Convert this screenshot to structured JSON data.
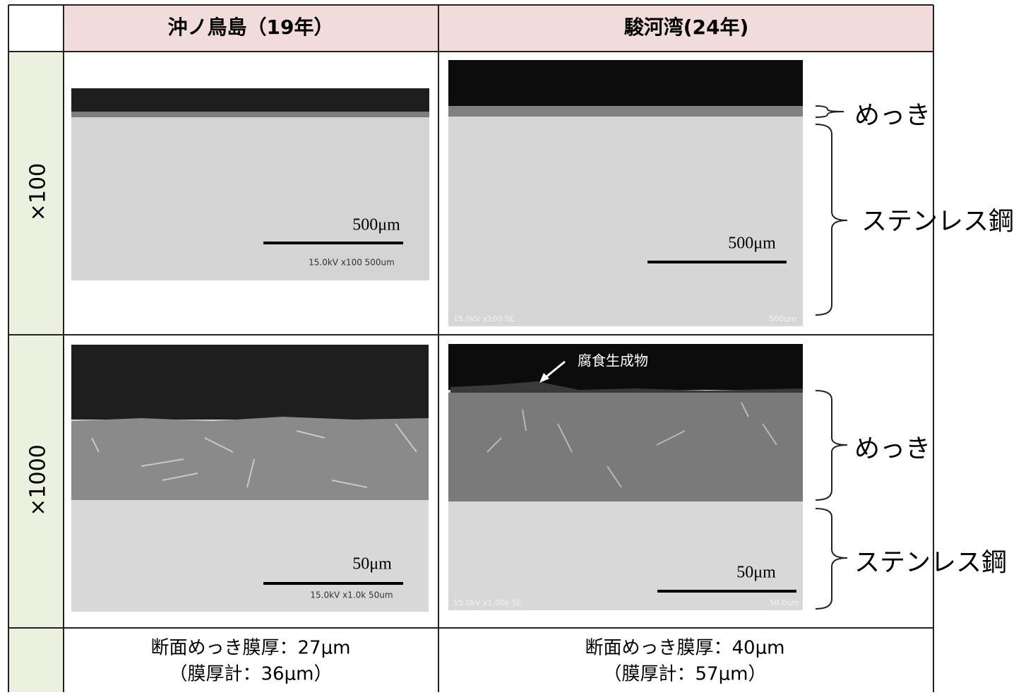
{
  "header": {
    "columns": [
      "沖ノ鳥島（19年）",
      "駿河湾(24年)"
    ]
  },
  "rows": [
    {
      "label": "×100",
      "left": {
        "scale": "500μm",
        "sem_info": "15.0kV x100 500um"
      },
      "right": {
        "scale": "500μm",
        "sem_info": "15.0kV x100 SE",
        "sem_scale": "500um"
      },
      "side_labels": [
        "めっき",
        "ステンレス鋼"
      ]
    },
    {
      "label": "×1000",
      "left": {
        "scale": "50μm",
        "sem_info": "15.0kV x1.0k 50um"
      },
      "right": {
        "scale": "50μm",
        "sem_info": "15.0kV x1.00k SE",
        "sem_scale": "50.0um",
        "annotation": "腐食生成物"
      },
      "side_labels": [
        "めっき",
        "ステンレス鋼"
      ]
    }
  ],
  "footer": {
    "left": [
      "断面めっき膜厚：27μm",
      "（膜厚計：36μm）"
    ],
    "right": [
      "断面めっき膜厚：40μm",
      "（膜厚計：57μm）"
    ]
  }
}
